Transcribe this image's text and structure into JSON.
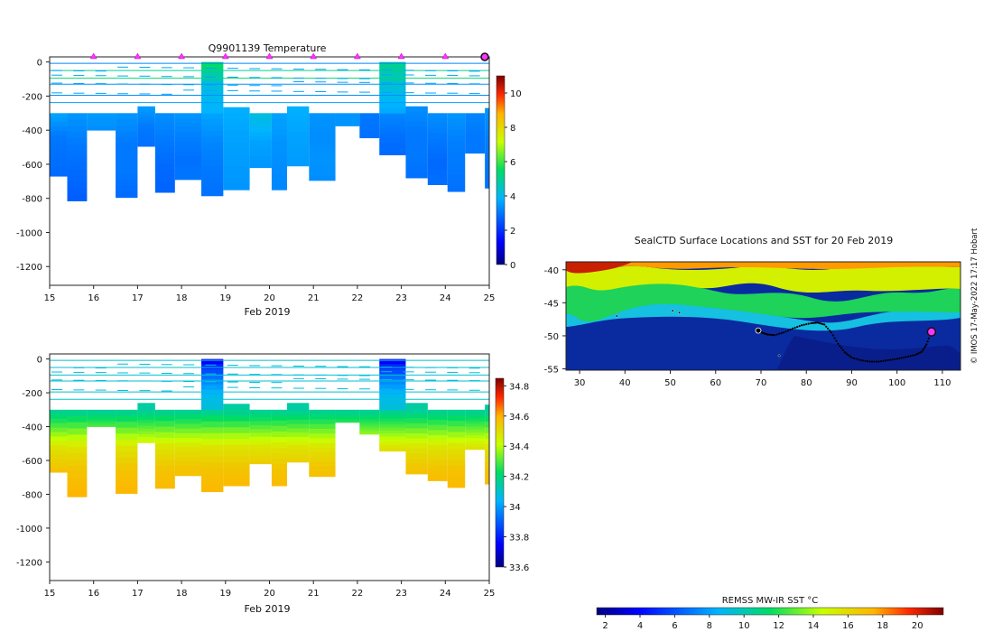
{
  "chart_data": [
    {
      "type": "heatmap",
      "title": "Q9901139  Temperature",
      "variable": "temperature",
      "xlabel": "Feb 2019",
      "x_ticks": [
        15,
        16,
        17,
        18,
        19,
        20,
        21,
        22,
        23,
        24,
        25
      ],
      "y_ticks": [
        0,
        -200,
        -400,
        -600,
        -800,
        -1000,
        -1200
      ],
      "xlim": [
        15,
        25
      ],
      "ylim": [
        -1310,
        30
      ],
      "colorbar": {
        "min": 0,
        "max": 11,
        "ticks": [
          0,
          2,
          4,
          6,
          8,
          10
        ]
      },
      "profile_markers_day": [
        16,
        17,
        18,
        19,
        20,
        21,
        22,
        23,
        24
      ],
      "current_marker_day": 25,
      "profiles": [
        {
          "t0": 15.0,
          "t1": 15.4,
          "bottom": 670,
          "top_deep": 300,
          "deep_vals": [
            3.6,
            3.0,
            2.9,
            2.8
          ],
          "has_upper": false
        },
        {
          "t0": 15.4,
          "t1": 15.85,
          "bottom": 815,
          "top_deep": 300,
          "deep_vals": [
            3.4,
            3.0,
            2.8,
            2.6
          ],
          "has_upper": false
        },
        {
          "t0": 15.85,
          "t1": 16.5,
          "bottom": 400,
          "top_deep": 300,
          "deep_vals": [
            3.5,
            3.3
          ],
          "has_upper": false
        },
        {
          "t0": 16.5,
          "t1": 17.0,
          "bottom": 795,
          "top_deep": 300,
          "deep_vals": [
            3.4,
            3.0,
            3.0,
            2.8
          ],
          "has_upper": false
        },
        {
          "t0": 17.0,
          "t1": 17.4,
          "bottom": 495,
          "top_deep": 260,
          "deep_vals": [
            3.5,
            3.0,
            2.9
          ],
          "has_upper": false
        },
        {
          "t0": 17.4,
          "t1": 17.85,
          "bottom": 765,
          "top_deep": 300,
          "deep_vals": [
            3.3,
            3.0,
            2.8,
            2.7
          ],
          "has_upper": false
        },
        {
          "t0": 17.85,
          "t1": 18.45,
          "bottom": 690,
          "top_deep": 300,
          "deep_vals": [
            3.4,
            3.1,
            2.9,
            3.0
          ],
          "has_upper": false
        },
        {
          "t0": 18.45,
          "t1": 18.95,
          "bottom": 785,
          "top_deep": 300,
          "deep_vals": [
            3.6,
            3.2,
            3.0,
            2.9
          ],
          "has_upper": true,
          "upper_vals": [
            5.5,
            4.3,
            4.0,
            3.8
          ]
        },
        {
          "t0": 18.95,
          "t1": 19.55,
          "bottom": 750,
          "top_deep": 265,
          "deep_vals": [
            3.8,
            3.6,
            3.5,
            3.4
          ],
          "has_upper": false
        },
        {
          "t0": 19.55,
          "t1": 20.05,
          "bottom": 620,
          "top_deep": 300,
          "deep_vals": [
            4.2,
            3.6,
            3.4
          ],
          "has_upper": false
        },
        {
          "t0": 20.05,
          "t1": 20.4,
          "bottom": 750,
          "top_deep": 300,
          "deep_vals": [
            3.6,
            3.4,
            3.3,
            3.2
          ],
          "has_upper": false
        },
        {
          "t0": 20.4,
          "t1": 20.9,
          "bottom": 610,
          "top_deep": 260,
          "deep_vals": [
            3.8,
            3.6,
            3.5
          ],
          "has_upper": false
        },
        {
          "t0": 20.9,
          "t1": 21.5,
          "bottom": 695,
          "top_deep": 300,
          "deep_vals": [
            3.4,
            3.3,
            3.4,
            3.3
          ],
          "has_upper": false
        },
        {
          "t0": 21.5,
          "t1": 22.05,
          "bottom": 375,
          "top_deep": 300,
          "deep_vals": [
            3.4
          ],
          "has_upper": false
        },
        {
          "t0": 22.05,
          "t1": 22.5,
          "bottom": 445,
          "top_deep": 300,
          "deep_vals": [
            3.0,
            2.9
          ],
          "has_upper": false
        },
        {
          "t0": 22.5,
          "t1": 23.1,
          "bottom": 545,
          "top_deep": 300,
          "deep_vals": [
            3.2,
            2.9,
            2.8
          ],
          "has_upper": true,
          "upper_vals": [
            5.0,
            4.2,
            3.6
          ]
        },
        {
          "t0": 23.1,
          "t1": 23.6,
          "bottom": 680,
          "top_deep": 260,
          "deep_vals": [
            3.3,
            3.0,
            3.0,
            2.9
          ],
          "has_upper": false
        },
        {
          "t0": 23.6,
          "t1": 24.05,
          "bottom": 720,
          "top_deep": 300,
          "deep_vals": [
            3.3,
            3.0,
            2.8,
            2.9
          ],
          "has_upper": false
        },
        {
          "t0": 24.05,
          "t1": 24.45,
          "bottom": 760,
          "top_deep": 300,
          "deep_vals": [
            3.4,
            3.1,
            3.0,
            2.9
          ],
          "has_upper": false
        },
        {
          "t0": 24.45,
          "t1": 24.9,
          "bottom": 535,
          "top_deep": 300,
          "deep_vals": [
            3.2,
            3.0,
            3.0
          ],
          "has_upper": false
        },
        {
          "t0": 24.9,
          "t1": 25.0,
          "bottom": 740,
          "top_deep": 270,
          "deep_vals": [
            3.4,
            3.1,
            3.0,
            2.9
          ],
          "has_upper": false
        }
      ],
      "thin_lines": [
        {
          "depth": 8,
          "value": 3.2
        },
        {
          "depth": 50,
          "value": 5.0
        },
        {
          "depth": 95,
          "value": 5.4
        },
        {
          "depth": 130,
          "value": 3.4
        },
        {
          "depth": 195,
          "value": 3.3
        },
        {
          "depth": 238,
          "value": 3.5
        }
      ]
    },
    {
      "type": "heatmap",
      "title": "",
      "variable": "salinity",
      "xlabel": "Feb 2019",
      "x_ticks": [
        15,
        16,
        17,
        18,
        19,
        20,
        21,
        22,
        23,
        24,
        25
      ],
      "y_ticks": [
        0,
        -200,
        -400,
        -600,
        -800,
        -1000,
        -1200
      ],
      "xlim": [
        15,
        25
      ],
      "ylim": [
        -1310,
        30
      ],
      "colorbar": {
        "min": 33.6,
        "max": 34.85,
        "ticks": [
          33.6,
          33.8,
          34,
          34.2,
          34.4,
          34.6,
          34.8
        ]
      },
      "profiles_same_as": "temperature",
      "salinity_gradient": [
        {
          "depth": 300,
          "value": 34.15
        },
        {
          "depth": 420,
          "value": 34.33
        },
        {
          "depth": 520,
          "value": 34.48
        },
        {
          "depth": 650,
          "value": 34.56
        },
        {
          "depth": 820,
          "value": 34.6
        }
      ],
      "upper_column_salinity": [
        33.75,
        33.95,
        34.05,
        34.1
      ]
    },
    {
      "type": "heatmap",
      "title": "SealCTD Surface Locations and SST for 20 Feb 2019",
      "variable": "sst_map",
      "x_ticks": [
        30,
        40,
        50,
        60,
        70,
        80,
        90,
        100,
        110
      ],
      "y_ticks": [
        -40,
        -45,
        -50,
        -55
      ],
      "xlim": [
        27,
        114
      ],
      "ylim": [
        -55.2,
        -38.8
      ],
      "colorbar_label": "REMSS MW-IR SST °C",
      "colorbar": {
        "min": 1.5,
        "max": 21.5,
        "ticks": [
          2,
          4,
          6,
          8,
          10,
          12,
          14,
          16,
          18,
          20
        ]
      },
      "credit": "© IMOS 17-May-2022 17:17 Hobart",
      "track": [
        [
          69.3,
          -49.2
        ],
        [
          69.8,
          -49.4
        ],
        [
          70.5,
          -49.6
        ],
        [
          71.5,
          -49.8
        ],
        [
          73,
          -49.9
        ],
        [
          75,
          -49.5
        ],
        [
          77,
          -48.9
        ],
        [
          79,
          -48.4
        ],
        [
          81,
          -48.1
        ],
        [
          82.5,
          -48
        ],
        [
          84,
          -48.3
        ],
        [
          85.5,
          -49.5
        ],
        [
          87,
          -51.2
        ],
        [
          88.5,
          -52.5
        ],
        [
          90,
          -53.3
        ],
        [
          92,
          -53.7
        ],
        [
          94,
          -53.9
        ],
        [
          96,
          -53.9
        ],
        [
          98,
          -53.7
        ],
        [
          100,
          -53.5
        ],
        [
          102,
          -53.2
        ],
        [
          104,
          -52.9
        ],
        [
          105.5,
          -52.4
        ],
        [
          106.5,
          -51.3
        ],
        [
          107.5,
          -49.5
        ]
      ],
      "current_position": [
        107.6,
        -49.4
      ],
      "scattered_points": [
        [
          38.2,
          -47
        ],
        [
          50.5,
          -46.2
        ],
        [
          52,
          -46.5
        ],
        [
          74,
          -53
        ]
      ]
    }
  ]
}
